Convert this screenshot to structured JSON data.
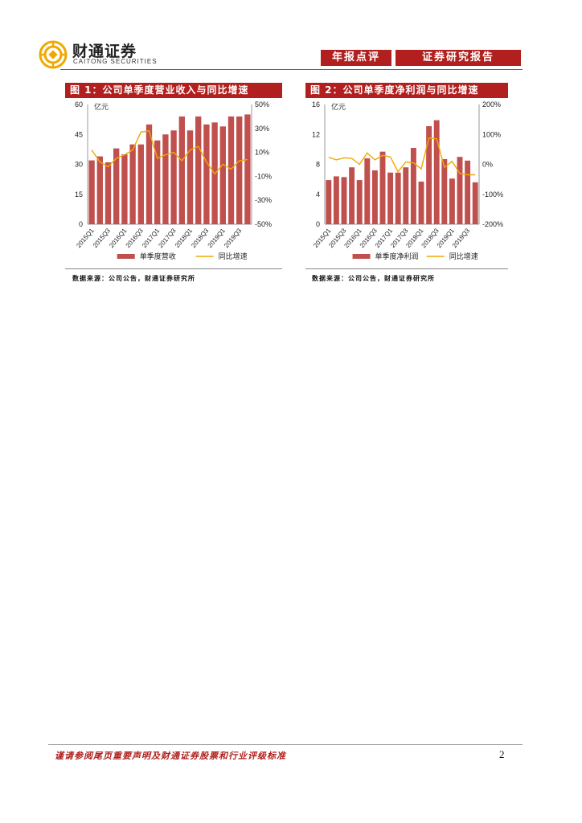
{
  "header": {
    "brand_cn": "财通证券",
    "brand_en": "CAITONG SECURITIES",
    "tag_1": "年报点评",
    "tag_2": "证券研究报告"
  },
  "figures": [
    {
      "title": "图 1：公司单季度营业收入与同比增速",
      "source": "数据来源：公司公告，财通证券研究所"
    },
    {
      "title": "图 2：公司单季度净利润与同比增速",
      "source": "数据来源：公司公告，财通证券研究所"
    }
  ],
  "chart_data": [
    {
      "type": "bar",
      "unit_label": "亿元",
      "categories": [
        "2015Q1",
        "2015Q2",
        "2015Q3",
        "2015Q4",
        "2016Q1",
        "2016Q2",
        "2016Q3",
        "2016Q4",
        "2017Q1",
        "2017Q2",
        "2017Q3",
        "2017Q4",
        "2018Q1",
        "2018Q2",
        "2018Q3",
        "2018Q4",
        "2019Q1",
        "2019Q2",
        "2019Q3",
        "2019Q4"
      ],
      "x_tick_labels": [
        "2015Q1",
        "2015Q3",
        "2016Q1",
        "2016Q3",
        "2017Q1",
        "2017Q3",
        "2018Q1",
        "2018Q3",
        "2019Q1",
        "2019Q3"
      ],
      "series": [
        {
          "name": "单季度营收",
          "kind": "bar",
          "axis": "left",
          "color": "#c0504d",
          "values": [
            32,
            34,
            31,
            38,
            35,
            40,
            40,
            50,
            42,
            45,
            47,
            54,
            47,
            54,
            50,
            51,
            49,
            54,
            54,
            55
          ]
        },
        {
          "name": "同比增速",
          "kind": "line",
          "axis": "right",
          "color": "#f0a800",
          "values": [
            12,
            2,
            -2,
            5,
            8,
            12,
            27,
            28,
            5,
            8,
            10,
            3,
            12,
            15,
            2,
            -8,
            0,
            -4,
            3,
            4
          ]
        }
      ],
      "left_axis": {
        "ylim": [
          0,
          60
        ],
        "ticks": [
          "0",
          "15",
          "30",
          "45",
          "60"
        ]
      },
      "right_axis": {
        "ylim": [
          -50,
          50
        ],
        "ticks": [
          "-50%",
          "-30%",
          "-10%",
          "10%",
          "30%",
          "50%"
        ]
      },
      "legend_position": "bottom"
    },
    {
      "type": "bar",
      "unit_label": "亿元",
      "categories": [
        "2015Q1",
        "2015Q2",
        "2015Q3",
        "2015Q4",
        "2016Q1",
        "2016Q2",
        "2016Q3",
        "2016Q4",
        "2017Q1",
        "2017Q2",
        "2017Q3",
        "2017Q4",
        "2018Q1",
        "2018Q2",
        "2018Q3",
        "2018Q4",
        "2019Q1",
        "2019Q2",
        "2019Q3",
        "2019Q4"
      ],
      "x_tick_labels": [
        "2015Q1",
        "2015Q3",
        "2016Q1",
        "2016Q3",
        "2017Q1",
        "2017Q3",
        "2018Q1",
        "2018Q3",
        "2019Q1",
        "2019Q3"
      ],
      "series": [
        {
          "name": "单季度净利润",
          "kind": "bar",
          "axis": "left",
          "color": "#c0504d",
          "values": [
            5.9,
            6.4,
            6.3,
            7.6,
            5.9,
            8.8,
            7.2,
            9.7,
            6.9,
            6.9,
            7.6,
            10.2,
            5.7,
            13.1,
            13.9,
            8.7,
            6.1,
            9.0,
            8.5,
            5.6
          ]
        },
        {
          "name": "同比增速",
          "kind": "line",
          "axis": "right",
          "color": "#f0a800",
          "values": [
            24,
            15,
            22,
            20,
            0,
            38,
            15,
            30,
            25,
            -25,
            8,
            5,
            -15,
            88,
            85,
            -10,
            10,
            -30,
            -35,
            -35
          ]
        }
      ],
      "left_axis": {
        "ylim": [
          0,
          16
        ],
        "ticks": [
          "0",
          "4",
          "8",
          "12",
          "16"
        ]
      },
      "right_axis": {
        "ylim": [
          -200,
          200
        ],
        "ticks": [
          "-200%",
          "-100%",
          "0%",
          "100%",
          "200%"
        ]
      },
      "legend_position": "bottom"
    }
  ],
  "footer": {
    "disclaimer": "谨请参阅尾页重要声明及财通证券股票和行业评级标准",
    "page_number": "2"
  }
}
